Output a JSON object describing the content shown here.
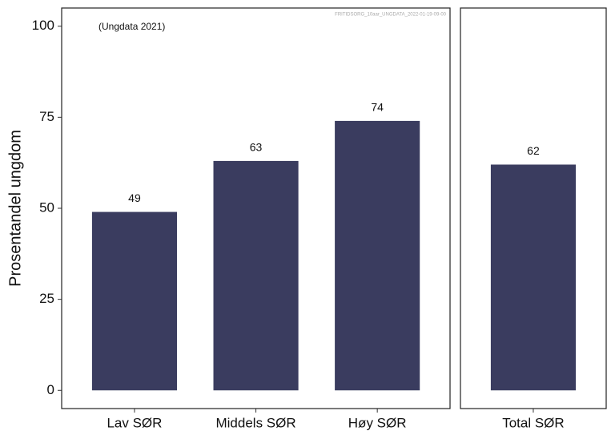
{
  "chart_data": [
    {
      "type": "bar",
      "ylabel": "Prosentandel ungdom",
      "annotation": "(Ungdata 2021)",
      "watermark": "FRITIDSORG_10aar_UNGDATA_2022-01-19-09-00",
      "categories": [
        "Lav SØR",
        "Middels SØR",
        "Høy SØR"
      ],
      "values": [
        49,
        63,
        74
      ],
      "color": "#3a3c5f",
      "ylim": [
        -5,
        105
      ],
      "yticks": [
        0,
        25,
        50,
        75,
        100
      ],
      "grid": false
    },
    {
      "type": "bar",
      "categories": [
        "Total SØR"
      ],
      "values": [
        62
      ],
      "color": "#3a3c5f",
      "ylim": [
        -5,
        105
      ],
      "grid": false
    }
  ]
}
